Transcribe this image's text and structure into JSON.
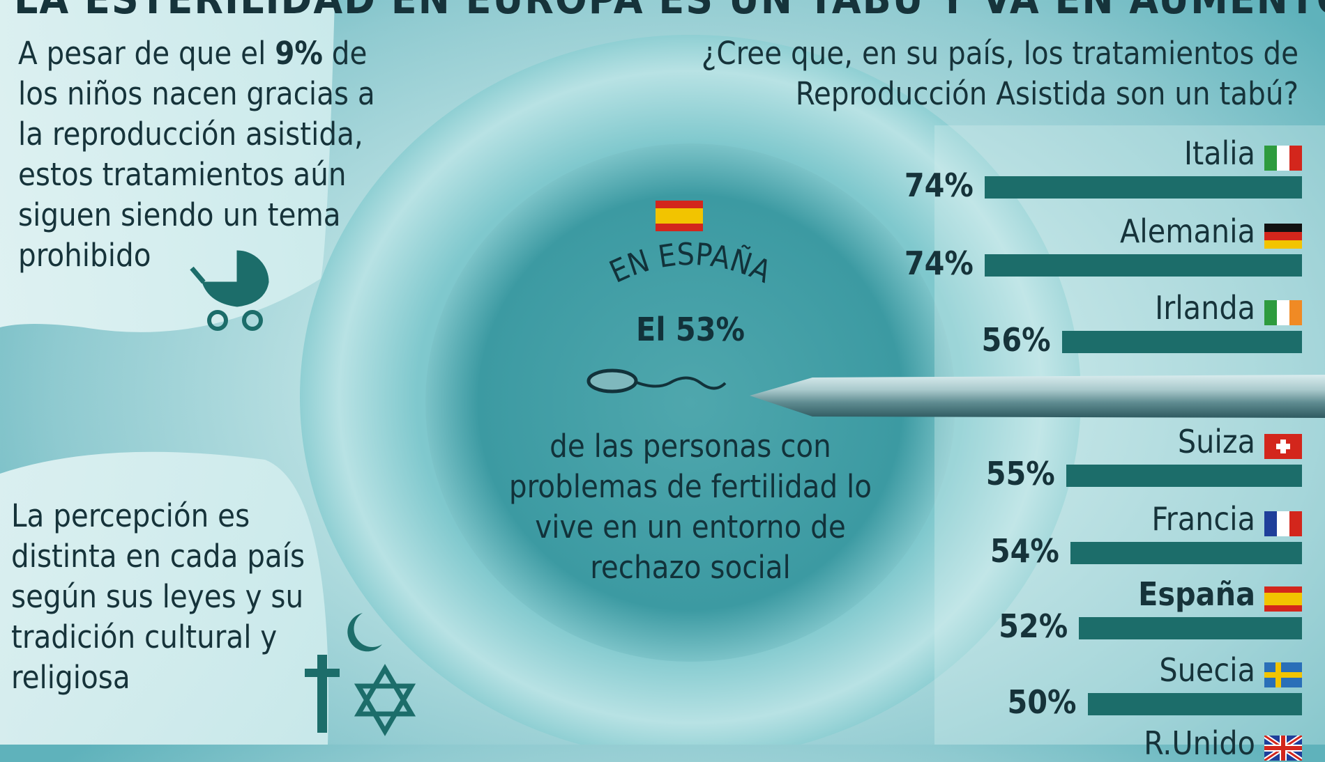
{
  "headline": "LA ESTERILIDAD EN EUROPA ES UN TABÚ Y VA EN AUMENTO",
  "intro": {
    "before": "A pesar de que el ",
    "highlight": "9%",
    "after": " de los niños nacen gracias a la reproducción asistida, estos tratamientos aún siguen siendo un tema prohibido"
  },
  "perception": "La percepción es distinta en cada país según sus leyes y su tradición cultural y religiosa",
  "center": {
    "arc_label": "EN ESPAÑA",
    "percent": "El 53%",
    "description": "de las personas con problemas de fertilidad lo vive en un entorno de rechazo social"
  },
  "chart_data": {
    "type": "bar",
    "title": "¿Cree que, en su país, los tratamientos de Reproducción Asistida son un tabú?",
    "categories": [
      "Italia",
      "Alemania",
      "Irlanda",
      "Suiza",
      "Francia",
      "España",
      "Suecia",
      "R.Unido"
    ],
    "values": [
      74,
      74,
      56,
      55,
      54,
      52,
      50,
      null
    ],
    "labels": [
      "74%",
      "74%",
      "56%",
      "55%",
      "54%",
      "52%",
      "50%",
      ""
    ],
    "highlight": "España",
    "bar_color": "#1c6d6a",
    "orientation": "horizontal"
  },
  "icons": [
    "pram-icon",
    "crescent-icon",
    "cross-icon",
    "star-of-david-icon",
    "sperm-icon",
    "needle-icon"
  ],
  "colors": {
    "bar": "#1c6d6a",
    "text": "#16333a"
  }
}
